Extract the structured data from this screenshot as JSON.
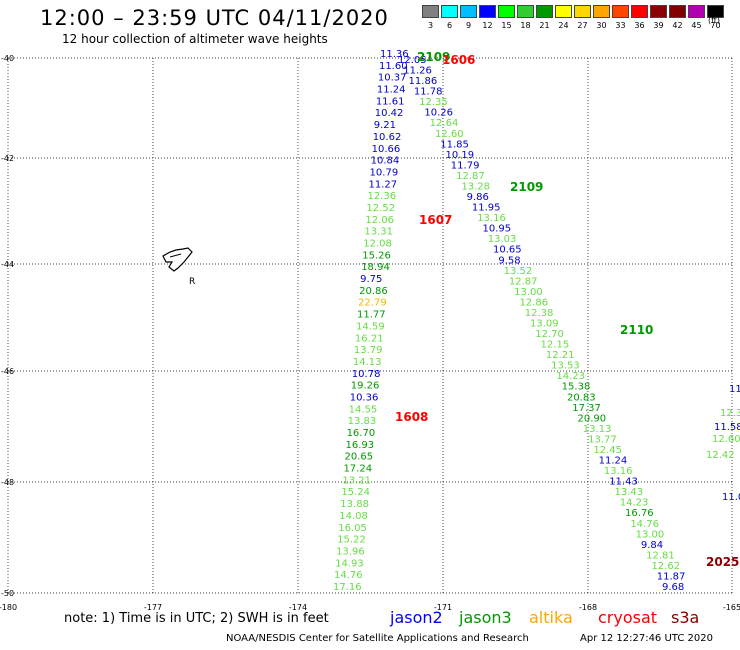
{
  "header": {
    "title": "12:00 – 23:59 UTC 04/11/2020",
    "subtitle": "12 hour collection of altimeter wave heights"
  },
  "scale": {
    "labels": [
      "3",
      "6",
      "9",
      "12",
      "15",
      "18",
      "21",
      "24",
      "27",
      "30",
      "33",
      "36",
      "39",
      "42",
      "45",
      "70"
    ],
    "colors": [
      "#808080",
      "#00ffff",
      "#00bfff",
      "#0000ff",
      "#00ff00",
      "#32cd32",
      "#009900",
      "#ffff00",
      "#ffd700",
      "#ffa500",
      "#ff4500",
      "#ff0000",
      "#8b0000",
      "#800000",
      "#b000b0",
      "#000000"
    ],
    "unit": "(ft)"
  },
  "axes": {
    "lon_labels": [
      "-180",
      "-177",
      "-174",
      "-171",
      "-168",
      "-165"
    ],
    "lat_labels": [
      "-40",
      "-42",
      "-44",
      "-46",
      "-48",
      "-50"
    ]
  },
  "island_label": "R",
  "tracks": [
    {
      "color": "#0000cc",
      "values": [
        "11.36",
        "11.60",
        "10.37",
        "11.24",
        "11.61",
        "10.42",
        "9.21",
        "10.62",
        "10.66",
        "10.84",
        "10.79",
        "11.27"
      ]
    },
    {
      "color": "#66dd44",
      "values": [
        "12.36",
        "12.52",
        "12.06",
        "13.31",
        "12.08"
      ]
    },
    {
      "color": "#009900",
      "values": [
        "15.26",
        "18.94"
      ]
    },
    {
      "color": "#0000cc",
      "values": [
        "9.75"
      ]
    },
    {
      "color": "#009900",
      "values": [
        "20.86"
      ]
    },
    {
      "color": "#f2b705",
      "values": [
        "22.79"
      ]
    },
    {
      "color": "#009900",
      "values": [
        "11.77"
      ]
    },
    {
      "color": "#66dd44",
      "values": [
        "14.59",
        "16.21",
        "13.79",
        "14.13"
      ]
    },
    {
      "color": "#0000cc",
      "values": [
        "10.78"
      ]
    },
    {
      "color": "#009900",
      "values": [
        "19.26"
      ]
    },
    {
      "color": "#0000cc",
      "values": [
        "10.36"
      ]
    },
    {
      "color": "#66dd44",
      "values": [
        "14.55",
        "13.83"
      ]
    },
    {
      "color": "#009900",
      "values": [
        "16.70",
        "16.93",
        "20.65",
        "17.24"
      ]
    },
    {
      "color": "#66dd44",
      "values": [
        "13.21",
        "15.24",
        "13.88",
        "14.08",
        "16.05",
        "15.22",
        "13.96",
        "14.93",
        "14.76",
        "17.16"
      ]
    }
  ],
  "track_b": [
    [
      "#0000cc",
      "12.05"
    ],
    [
      "#0000cc",
      "11.26"
    ],
    [
      "#0000cc",
      "11.86"
    ],
    [
      "#0000cc",
      "11.78"
    ],
    [
      "#66dd44",
      "12.35"
    ],
    [
      "#0000cc",
      "10.26"
    ],
    [
      "#66dd44",
      "12.64"
    ],
    [
      "#66dd44",
      "12.60"
    ],
    [
      "#0000cc",
      "11.85"
    ],
    [
      "#0000cc",
      "10.19"
    ],
    [
      "#0000cc",
      "11.79"
    ],
    [
      "#66dd44",
      "12.87"
    ],
    [
      "#66dd44",
      "13.28"
    ],
    [
      "#0000cc",
      "9.86"
    ],
    [
      "#0000cc",
      "11.95"
    ],
    [
      "#66dd44",
      "13.16"
    ],
    [
      "#0000cc",
      "10.95"
    ],
    [
      "#66dd44",
      "13.03"
    ],
    [
      "#0000cc",
      "10.65"
    ],
    [
      "#0000cc",
      "9.58"
    ],
    [
      "#66dd44",
      "13.52"
    ],
    [
      "#66dd44",
      "12.87"
    ],
    [
      "#66dd44",
      "13.00"
    ],
    [
      "#66dd44",
      "12.86"
    ],
    [
      "#66dd44",
      "12.38"
    ],
    [
      "#66dd44",
      "13.09"
    ],
    [
      "#66dd44",
      "12.70"
    ],
    [
      "#66dd44",
      "12.15"
    ],
    [
      "#66dd44",
      "12.21"
    ],
    [
      "#66dd44",
      "13.53"
    ],
    [
      "#66dd44",
      "14.23"
    ],
    [
      "#009900",
      "15.38"
    ],
    [
      "#009900",
      "20.83"
    ],
    [
      "#009900",
      "17.37"
    ],
    [
      "#009900",
      "20.90"
    ],
    [
      "#66dd44",
      "13.13"
    ],
    [
      "#66dd44",
      "13.77"
    ],
    [
      "#66dd44",
      "12.45"
    ],
    [
      "#0000cc",
      "11.24"
    ],
    [
      "#66dd44",
      "13.16"
    ],
    [
      "#0000cc",
      "11.43"
    ],
    [
      "#66dd44",
      "13.43"
    ],
    [
      "#66dd44",
      "14.23"
    ],
    [
      "#009900",
      "16.76"
    ],
    [
      "#66dd44",
      "14.76"
    ],
    [
      "#66dd44",
      "13.00"
    ],
    [
      "#0000cc",
      "9.84"
    ],
    [
      "#66dd44",
      "12.81"
    ],
    [
      "#66dd44",
      "12.62"
    ],
    [
      "#0000cc",
      "11.87"
    ],
    [
      "#0000cc",
      "9.68"
    ]
  ],
  "edge_values": [
    [
      "#0000cc",
      "11"
    ],
    [
      "#66dd44",
      "12.3"
    ],
    [
      "#0000cc",
      "11.58"
    ],
    [
      "#66dd44",
      "12.60"
    ],
    [
      "#66dd44",
      "12.42"
    ],
    [
      "#0000cc",
      "11.0"
    ]
  ],
  "pass_labels": [
    {
      "text": "2109",
      "color": "#009900"
    },
    {
      "text": "1606",
      "color": "#ff0000"
    },
    {
      "text": "2109",
      "color": "#009900"
    },
    {
      "text": "1607",
      "color": "#ff0000"
    },
    {
      "text": "2110",
      "color": "#009900"
    },
    {
      "text": "1608",
      "color": "#ff0000"
    },
    {
      "text": "2025",
      "color": "#8b0000"
    }
  ],
  "footer": {
    "note": "note:  1) Time is in UTC;  2) SWH is in feet",
    "legend": [
      {
        "name": "jason2",
        "color": "#0000ff"
      },
      {
        "name": "jason3",
        "color": "#009900"
      },
      {
        "name": "altika",
        "color": "#ffa500"
      },
      {
        "name": "cryosat",
        "color": "#ff0000"
      },
      {
        "name": "s3a",
        "color": "#8b0000"
      }
    ],
    "credit": "NOAA/NESDIS Center for Satellite Applications and Research",
    "stamp": "Apr 12 12:27:46 UTC 2020"
  }
}
